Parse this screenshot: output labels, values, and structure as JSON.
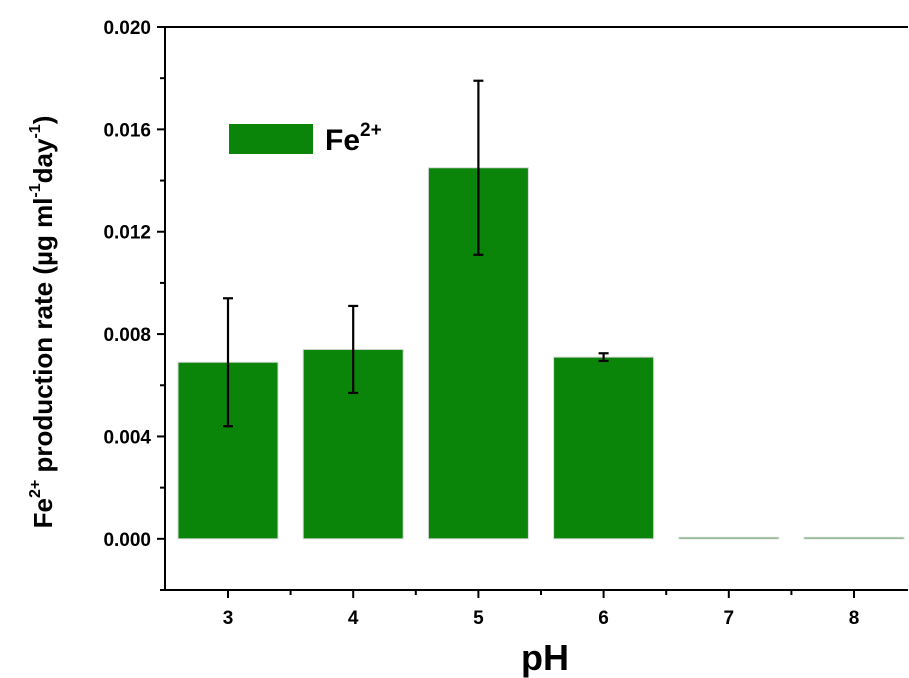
{
  "chart_data": {
    "type": "bar",
    "title": "",
    "xlabel": "pH",
    "ylabel": {
      "species_base": "Fe",
      "species_charge": "2+",
      "text_main": " production rate (",
      "mu": "µ",
      "unit_g_ml": "g ml",
      "exp_ml": "-1",
      "unit_day": "day",
      "exp_day": "-1",
      "close": ")"
    },
    "categories": [
      "3",
      "4",
      "5",
      "6",
      "7",
      "8"
    ],
    "series": [
      {
        "name": "Fe2+",
        "values": [
          0.0069,
          0.0074,
          0.0145,
          0.0071,
          0.0,
          0.0
        ],
        "errors": [
          0.0025,
          0.0017,
          0.0034,
          0.00015,
          0,
          0
        ]
      }
    ],
    "legend": {
      "base": "Fe",
      "charge": "2+",
      "position": "top-left"
    },
    "ylim": [
      -0.002,
      0.02
    ],
    "yticks": [
      "0.000",
      "0.004",
      "0.008",
      "0.012",
      "0.016",
      "0.020"
    ],
    "ytick_values": [
      0.0,
      0.004,
      0.008,
      0.012,
      0.016,
      0.02
    ],
    "grid": false,
    "colors": {
      "bar": "#0a8409",
      "bar_edge": "#d8d8d8",
      "error_bar": "#000000",
      "axis": "#000000"
    }
  }
}
